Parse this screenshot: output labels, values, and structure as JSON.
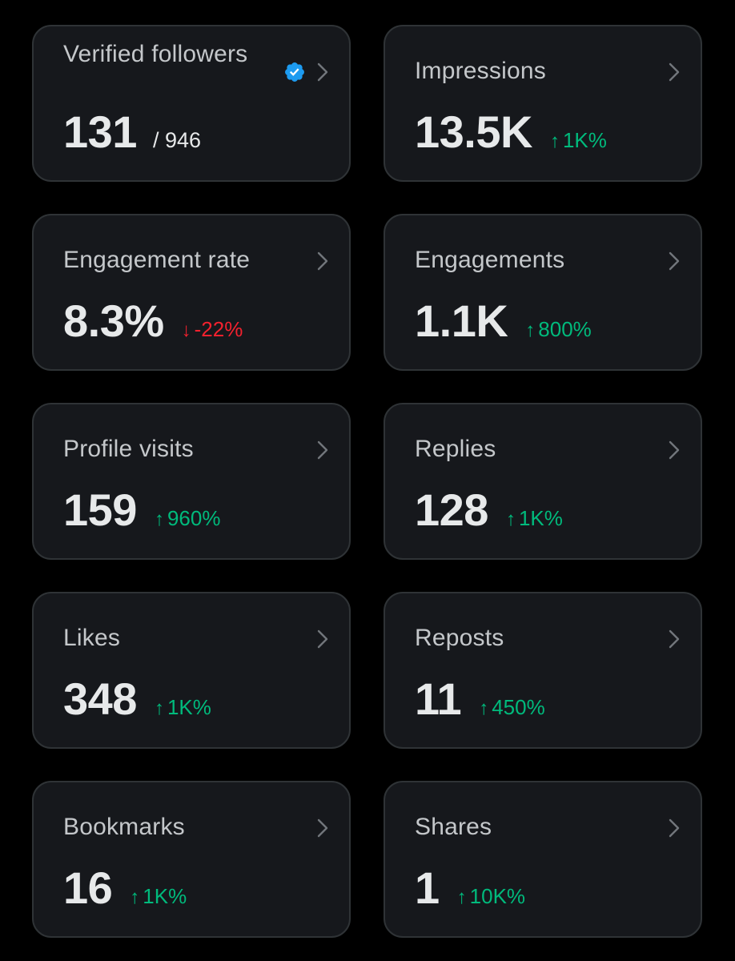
{
  "colors": {
    "background": "#000000",
    "card": "#16181c",
    "card_border": "#2f3336",
    "label": "#c4c7ca",
    "value": "#e7e9ea",
    "up": "#00ba7c",
    "down": "#f4212e",
    "verified": "#1d9bf0"
  },
  "cards": [
    {
      "label": "Verified followers",
      "value": "131",
      "sub": "/ 946",
      "icon": "verified-badge-icon"
    },
    {
      "label": "Impressions",
      "value": "13.5K",
      "change": "1K%",
      "trend": "up"
    },
    {
      "label": "Engagement rate",
      "value": "8.3%",
      "change": "-22%",
      "trend": "down"
    },
    {
      "label": "Engagements",
      "value": "1.1K",
      "change": "800%",
      "trend": "up"
    },
    {
      "label": "Profile visits",
      "value": "159",
      "change": "960%",
      "trend": "up"
    },
    {
      "label": "Replies",
      "value": "128",
      "change": "1K%",
      "trend": "up"
    },
    {
      "label": "Likes",
      "value": "348",
      "change": "1K%",
      "trend": "up"
    },
    {
      "label": "Reposts",
      "value": "11",
      "change": "450%",
      "trend": "up"
    },
    {
      "label": "Bookmarks",
      "value": "16",
      "change": "1K%",
      "trend": "up"
    },
    {
      "label": "Shares",
      "value": "1",
      "change": "10K%",
      "trend": "up"
    }
  ],
  "arrows": {
    "up": "↑",
    "down": "↓"
  }
}
